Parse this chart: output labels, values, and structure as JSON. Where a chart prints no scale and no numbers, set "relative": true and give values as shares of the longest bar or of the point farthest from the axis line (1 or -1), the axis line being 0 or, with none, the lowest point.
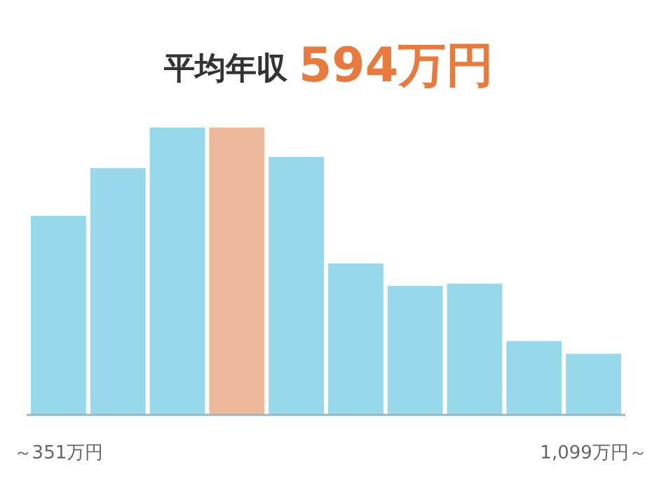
{
  "chart_data": {
    "type": "bar",
    "title": "平均年収",
    "subtitle": "594万円",
    "relative": true,
    "categories": [
      "～351万円",
      null,
      null,
      null,
      null,
      null,
      null,
      null,
      null,
      "1,099万円～"
    ],
    "values": [
      0.693,
      0.859,
      1,
      1,
      0.898,
      0.527,
      0.449,
      0.457,
      0.257,
      0.213
    ],
    "colors": [
      "#97d8ea",
      "#97d8ea",
      "#97d8ea",
      "#eeb99b",
      "#97d8ea",
      "#97d8ea",
      "#97d8ea",
      "#97d8ea",
      "#97d8ea",
      "#97d8ea"
    ]
  }
}
